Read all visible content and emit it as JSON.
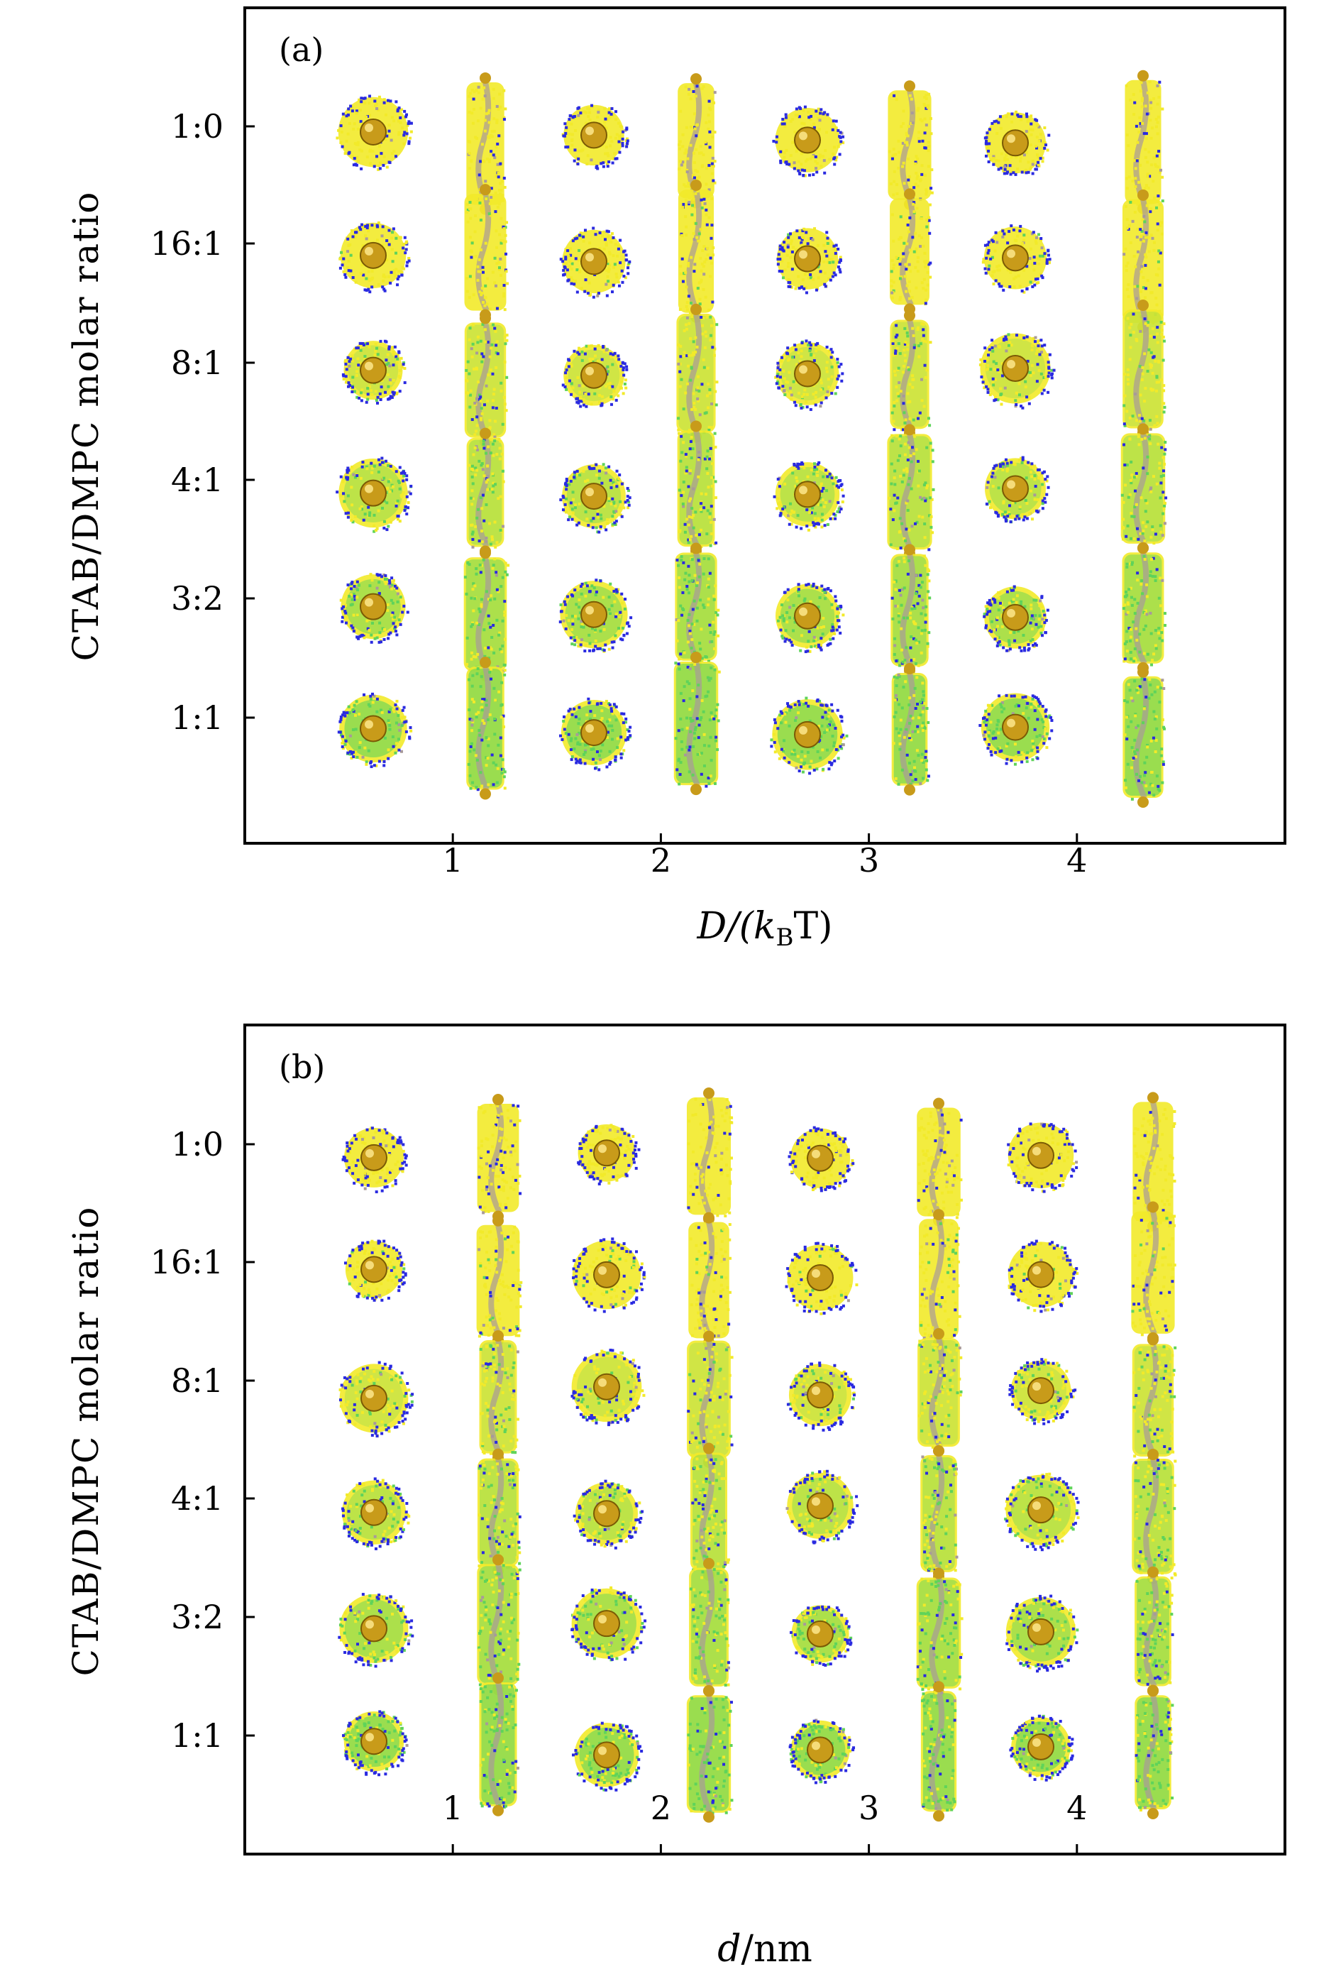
{
  "chart_data": [
    {
      "type": "scatter",
      "panel_label": "(a)",
      "xlabel": "D/(kBT)",
      "xlabel_parts": {
        "main": "D/(k",
        "sub": "B",
        "tail": "T)"
      },
      "ylabel": "CTAB/DMPC molar ratio",
      "xlim": [
        0,
        5
      ],
      "xticks": [
        1,
        2,
        3,
        4
      ],
      "xtick_labels": [
        "1",
        "2",
        "3",
        "4"
      ],
      "ytick_labels": [
        "1:0",
        "16:1",
        "8:1",
        "4:1",
        "3:2",
        "1:1"
      ],
      "grid": false,
      "snapshot_pattern": [
        "top-view",
        "side-view",
        "top-view",
        "side-view",
        "top-view",
        "side-view",
        "top-view",
        "side-view"
      ],
      "colors": {
        "ctab": "#f2ea2a",
        "dmpc": "#5fd35a",
        "head": "#2a2ae0",
        "core": "#a89a9a",
        "nanoparticle": "#c89b1a"
      }
    },
    {
      "type": "scatter",
      "panel_label": "(b)",
      "xlabel": "d/nm",
      "xlabel_parts": {
        "main": "d",
        "sub": "",
        "tail": "/nm"
      },
      "ylabel": "CTAB/DMPC molar ratio",
      "xlim": [
        0,
        5
      ],
      "xticks": [
        1,
        2,
        3,
        4
      ],
      "xtick_labels": [
        "1",
        "2",
        "3",
        "4"
      ],
      "ytick_labels": [
        "1:0",
        "16:1",
        "8:1",
        "4:1",
        "3:2",
        "1:1"
      ],
      "grid": false,
      "snapshot_pattern": [
        "top-view",
        "side-view",
        "top-view",
        "side-view",
        "top-view",
        "side-view",
        "top-view",
        "side-view"
      ],
      "colors": {
        "ctab": "#f2ea2a",
        "dmpc": "#5fd35a",
        "head": "#2a2ae0",
        "core": "#a89a9a",
        "nanoparticle": "#c89b1a"
      }
    }
  ]
}
